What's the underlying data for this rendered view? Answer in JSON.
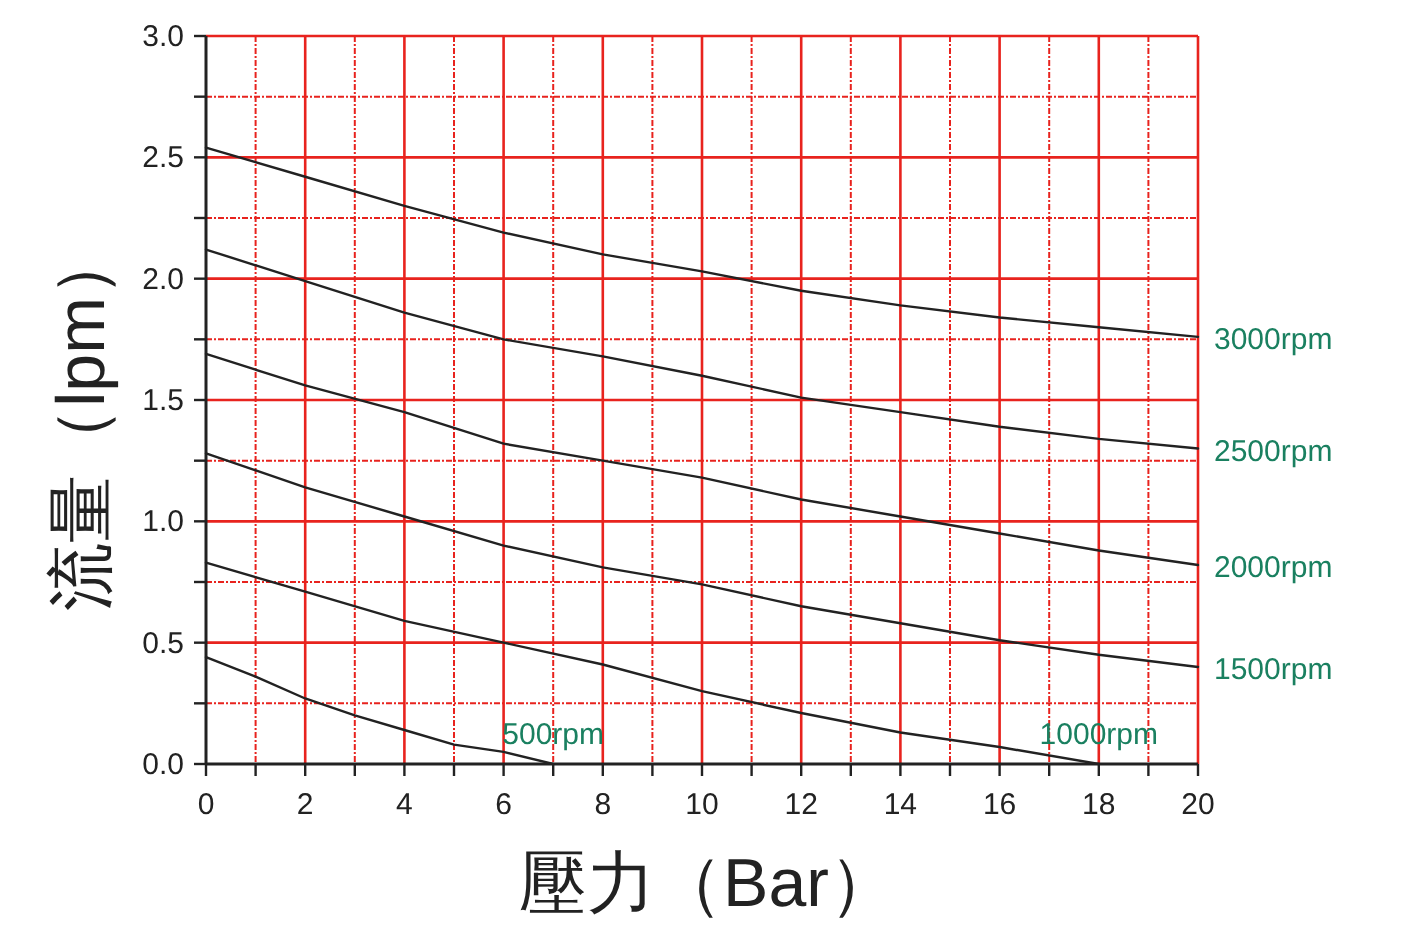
{
  "chart_data": {
    "type": "line",
    "xlabel": "壓力（Bar）",
    "ylabel": "流量（lpm）",
    "xlim": [
      0,
      20
    ],
    "ylim": [
      0,
      3
    ],
    "xticks": [
      0,
      {
        "value": 1,
        "label": null
      },
      2,
      {
        "value": 3,
        "label": null
      },
      4,
      {
        "value": 5,
        "label": null
      },
      6,
      {
        "value": 7,
        "label": null
      },
      8,
      {
        "value": 9,
        "label": null
      },
      10,
      {
        "value": 11,
        "label": null
      },
      12,
      {
        "value": 13,
        "label": null
      },
      14,
      {
        "value": 15,
        "label": null
      },
      16,
      {
        "value": 17,
        "label": null
      },
      18,
      {
        "value": 19,
        "label": null
      },
      20
    ],
    "yticks": [
      {
        "value": 0,
        "label": "0.0"
      },
      {
        "value": 0.25,
        "label": null
      },
      {
        "value": 0.5,
        "label": "0.5"
      },
      {
        "value": 0.75,
        "label": null
      },
      {
        "value": 1,
        "label": "1.0"
      },
      {
        "value": 1.25,
        "label": null
      },
      {
        "value": 1.5,
        "label": "1.5"
      },
      {
        "value": 1.75,
        "label": null
      },
      {
        "value": 2,
        "label": "2.0"
      },
      {
        "value": 2.25,
        "label": null
      },
      {
        "value": 2.5,
        "label": "2.5"
      },
      {
        "value": 2.75,
        "label": null
      },
      {
        "value": 3,
        "label": "3.0"
      }
    ],
    "grid": true,
    "series": [
      {
        "name": "3000rpm",
        "color": "#222222",
        "x": [
          0,
          2,
          4,
          6,
          8,
          10,
          12,
          14,
          16,
          18,
          20
        ],
        "values": [
          2.54,
          2.42,
          2.3,
          2.19,
          2.1,
          2.03,
          1.95,
          1.89,
          1.84,
          1.8,
          1.76
        ]
      },
      {
        "name": "2500rpm",
        "color": "#222222",
        "x": [
          0,
          2,
          4,
          6,
          8,
          10,
          12,
          14,
          16,
          18,
          20
        ],
        "values": [
          2.12,
          1.99,
          1.86,
          1.75,
          1.68,
          1.6,
          1.51,
          1.45,
          1.39,
          1.34,
          1.3
        ]
      },
      {
        "name": "2000rpm",
        "color": "#222222",
        "x": [
          0,
          2,
          4,
          6,
          8,
          10,
          12,
          14,
          16,
          18,
          20
        ],
        "values": [
          1.69,
          1.56,
          1.45,
          1.32,
          1.25,
          1.18,
          1.09,
          1.02,
          0.95,
          0.88,
          0.82
        ]
      },
      {
        "name": "1500rpm",
        "color": "#222222",
        "x": [
          0,
          2,
          4,
          6,
          8,
          10,
          12,
          14,
          16,
          18,
          20
        ],
        "values": [
          1.28,
          1.14,
          1.02,
          0.9,
          0.81,
          0.74,
          0.65,
          0.58,
          0.51,
          0.45,
          0.4
        ]
      },
      {
        "name": "1000rpm",
        "color": "#222222",
        "x": [
          0,
          2,
          4,
          6,
          8,
          10,
          12,
          14,
          16,
          18
        ],
        "values": [
          0.83,
          0.71,
          0.59,
          0.5,
          0.41,
          0.3,
          0.21,
          0.13,
          0.07,
          0.0
        ]
      },
      {
        "name": "500rpm",
        "color": "#222222",
        "x": [
          0,
          1,
          2,
          3,
          4,
          5,
          6,
          7
        ],
        "values": [
          0.44,
          0.36,
          0.27,
          0.2,
          0.14,
          0.08,
          0.05,
          0.0
        ]
      }
    ]
  }
}
